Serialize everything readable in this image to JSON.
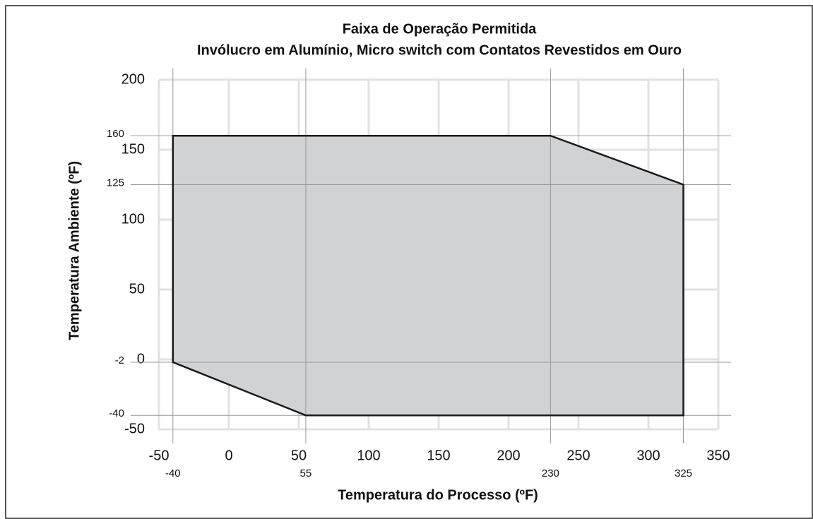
{
  "chart_data": {
    "type": "polygon",
    "title": "Faixa de Operação Permitida",
    "subtitle": "Invólucro em Alumínio, Micro switch com Contatos Revestidos em Ouro",
    "xlabel": "Temperatura do Processo (ºF)",
    "ylabel": "Temperatura Ambiente (ºF)",
    "x": [
      -40,
      230,
      325,
      325,
      55,
      -40
    ],
    "values": [
      160,
      160,
      125,
      -40,
      -40,
      -2
    ],
    "color": "#d1d2d4",
    "xlim": [
      -50,
      350
    ],
    "ylim": [
      -50,
      200
    ],
    "xticks": [
      -50,
      0,
      50,
      100,
      150,
      200,
      250,
      300,
      350
    ],
    "yticks": [
      -50,
      0,
      50,
      100,
      150,
      200
    ],
    "xticks_secondary": [
      -40,
      55,
      230,
      325
    ],
    "yticks_secondary": [
      -40,
      -2,
      125,
      160
    ],
    "grid": true
  }
}
